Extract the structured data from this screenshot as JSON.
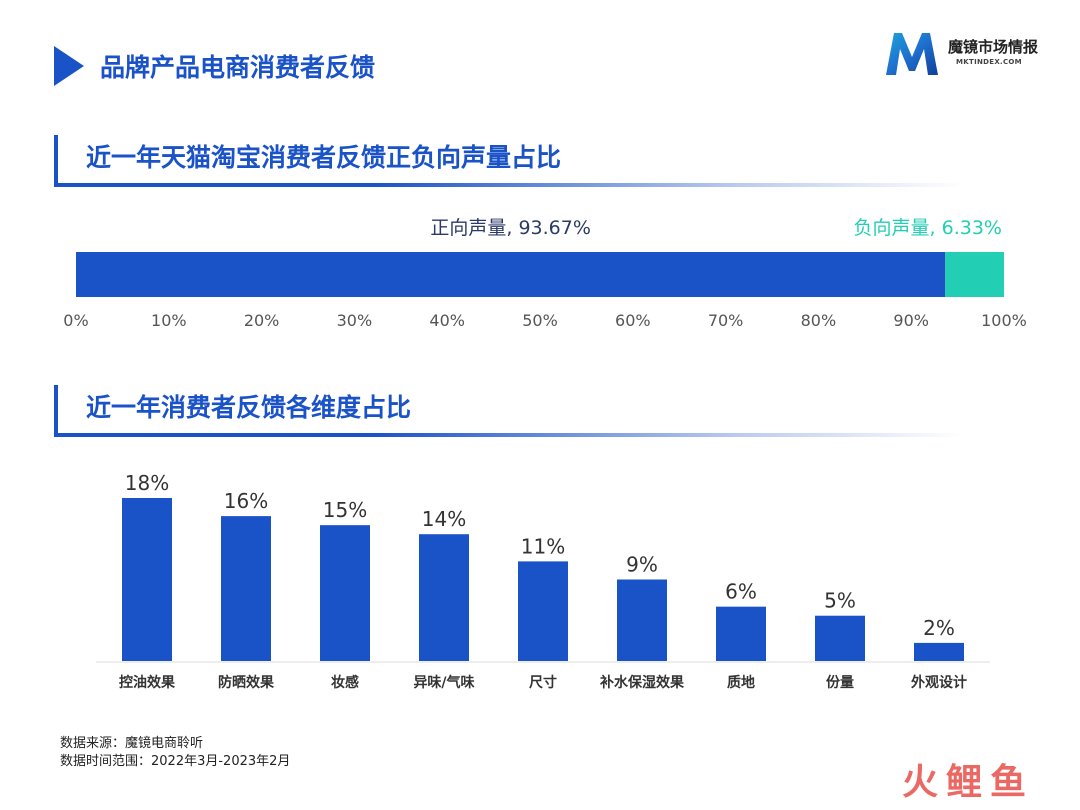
{
  "header": {
    "title": "品牌产品电商消费者反馈"
  },
  "logo": {
    "name": "魔镜市场情报",
    "domain": "MKTINDEX.COM"
  },
  "section1": {
    "title": "近一年天猫淘宝消费者反馈正负向声量占比"
  },
  "section2": {
    "title": "近一年消费者反馈各维度占比"
  },
  "chart_data": [
    {
      "type": "bar",
      "orientation": "horizontal-stacked",
      "series": [
        {
          "name": "正向声量",
          "value": 93.67,
          "label": "正向声量, 93.67%",
          "color": "#1a52c8"
        },
        {
          "name": "负向声量",
          "value": 6.33,
          "label": "负向声量, 6.33%",
          "color": "#23cfb4"
        }
      ],
      "xlim": [
        0,
        100
      ],
      "ticks": [
        "0%",
        "10%",
        "20%",
        "30%",
        "40%",
        "50%",
        "60%",
        "70%",
        "80%",
        "90%",
        "100%"
      ],
      "grid": false
    },
    {
      "type": "bar",
      "categories": [
        "控油效果",
        "防晒效果",
        "妆感",
        "异味/气味",
        "尺寸",
        "补水保湿效果",
        "质地",
        "份量",
        "外观设计"
      ],
      "values": [
        18,
        16,
        15,
        14,
        11,
        9,
        6,
        5,
        2
      ],
      "labels": [
        "18%",
        "16%",
        "15%",
        "14%",
        "11%",
        "9%",
        "6%",
        "5%",
        "2%"
      ],
      "ylim": [
        0,
        18
      ],
      "color": "#1a52c8",
      "grid": false
    }
  ],
  "footer": {
    "source": "数据来源：魔镜电商聆听",
    "period": "数据时间范围：2022年3月-2023年2月"
  },
  "watermark": {
    "text": "火鲤鱼"
  }
}
